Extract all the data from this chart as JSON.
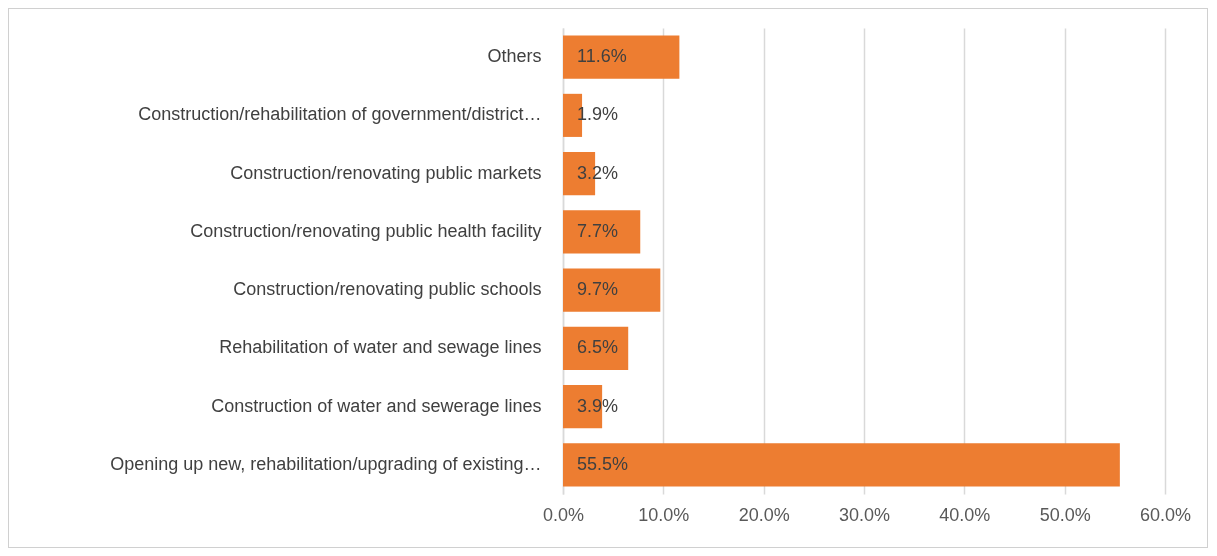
{
  "chart_data": {
    "type": "bar",
    "orientation": "horizontal",
    "categories": [
      "Others",
      "Construction/rehabilitation of government/district…",
      "Construction/renovating public markets",
      "Construction/renovating public health facility",
      "Construction/renovating public schools",
      "Rehabilitation of water and sewage lines",
      "Construction of water and sewerage lines",
      "Opening up new, rehabilitation/upgrading of existing…"
    ],
    "values": [
      11.6,
      1.9,
      3.2,
      7.7,
      9.7,
      6.5,
      3.9,
      55.5
    ],
    "value_labels": [
      "11.6%",
      "1.9%",
      "3.2%",
      "7.7%",
      "9.7%",
      "6.5%",
      "3.9%",
      "55.5%"
    ],
    "color": "#ed7d31",
    "xlim": [
      0,
      60
    ],
    "xticks": [
      {
        "value": 0,
        "label": "0.0%"
      },
      {
        "value": 10,
        "label": "10.0%"
      },
      {
        "value": 20,
        "label": "20.0%"
      },
      {
        "value": 30,
        "label": "30.0%"
      },
      {
        "value": 40,
        "label": "40.0%"
      },
      {
        "value": 50,
        "label": "50.0%"
      },
      {
        "value": 60,
        "label": "60.0%"
      }
    ],
    "grid": "x"
  }
}
